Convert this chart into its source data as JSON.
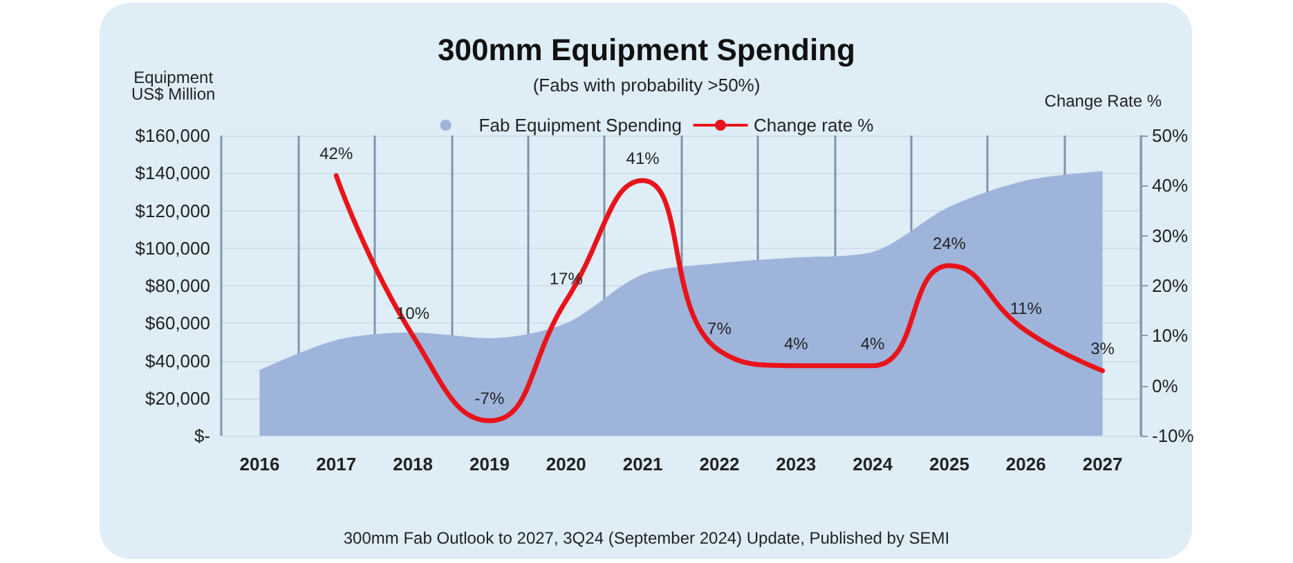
{
  "chart_data": {
    "type": "area",
    "title": "300mm Equipment Spending",
    "subtitle": "(Fabs with probability >50%)",
    "ylabel": "Equipment\nUS$ Million",
    "y2label": "Change Rate %",
    "annotations": [
      "300mm Fab Outlook to 2027, 3Q24 (September 2024) Update, Published by SEMI"
    ],
    "categories": [
      "2016",
      "2017",
      "2018",
      "2019",
      "2020",
      "2021",
      "2022",
      "2023",
      "2024",
      "2025",
      "2026",
      "2027"
    ],
    "series": [
      {
        "name": "Fab Equipment Spending",
        "color": "#9fb4db",
        "values": [
          35000,
          51000,
          55000,
          52000,
          60000,
          86000,
          92000,
          95000,
          98000,
          122000,
          136000,
          141000
        ]
      },
      {
        "name": "Change rate %",
        "type": "line",
        "axis": "y2",
        "color": "#e8141b",
        "values": [
          null,
          42,
          10,
          -7,
          17,
          41,
          7,
          4,
          4,
          24,
          11,
          3
        ],
        "value_labels": [
          null,
          "42%",
          "10%",
          "-7%",
          "17%",
          "41%",
          "7%",
          "4%",
          "4%",
          "24%",
          "11%",
          "3%"
        ]
      }
    ],
    "ylim": [
      0,
      160000
    ],
    "yticks": [
      {
        "value": 0,
        "label": "$-"
      },
      {
        "value": 20000,
        "label": "$20,000"
      },
      {
        "value": 40000,
        "label": "$40,000"
      },
      {
        "value": 60000,
        "label": "$60,000"
      },
      {
        "value": 80000,
        "label": "$80,000"
      },
      {
        "value": 100000,
        "label": "$100,000"
      },
      {
        "value": 120000,
        "label": "$120,000"
      },
      {
        "value": 140000,
        "label": "$140,000"
      },
      {
        "value": 160000,
        "label": "$160,000"
      }
    ],
    "y2lim": [
      -10,
      50
    ],
    "y2ticks": [
      {
        "value": -10,
        "label": "-10%"
      },
      {
        "value": 0,
        "label": "0%"
      },
      {
        "value": 10,
        "label": "10%"
      },
      {
        "value": 20,
        "label": "20%"
      },
      {
        "value": 30,
        "label": "30%"
      },
      {
        "value": 40,
        "label": "40%"
      },
      {
        "value": 50,
        "label": "50%"
      }
    ],
    "grid": true,
    "legend": "top",
    "marker": "none",
    "line_style": "solid"
  }
}
